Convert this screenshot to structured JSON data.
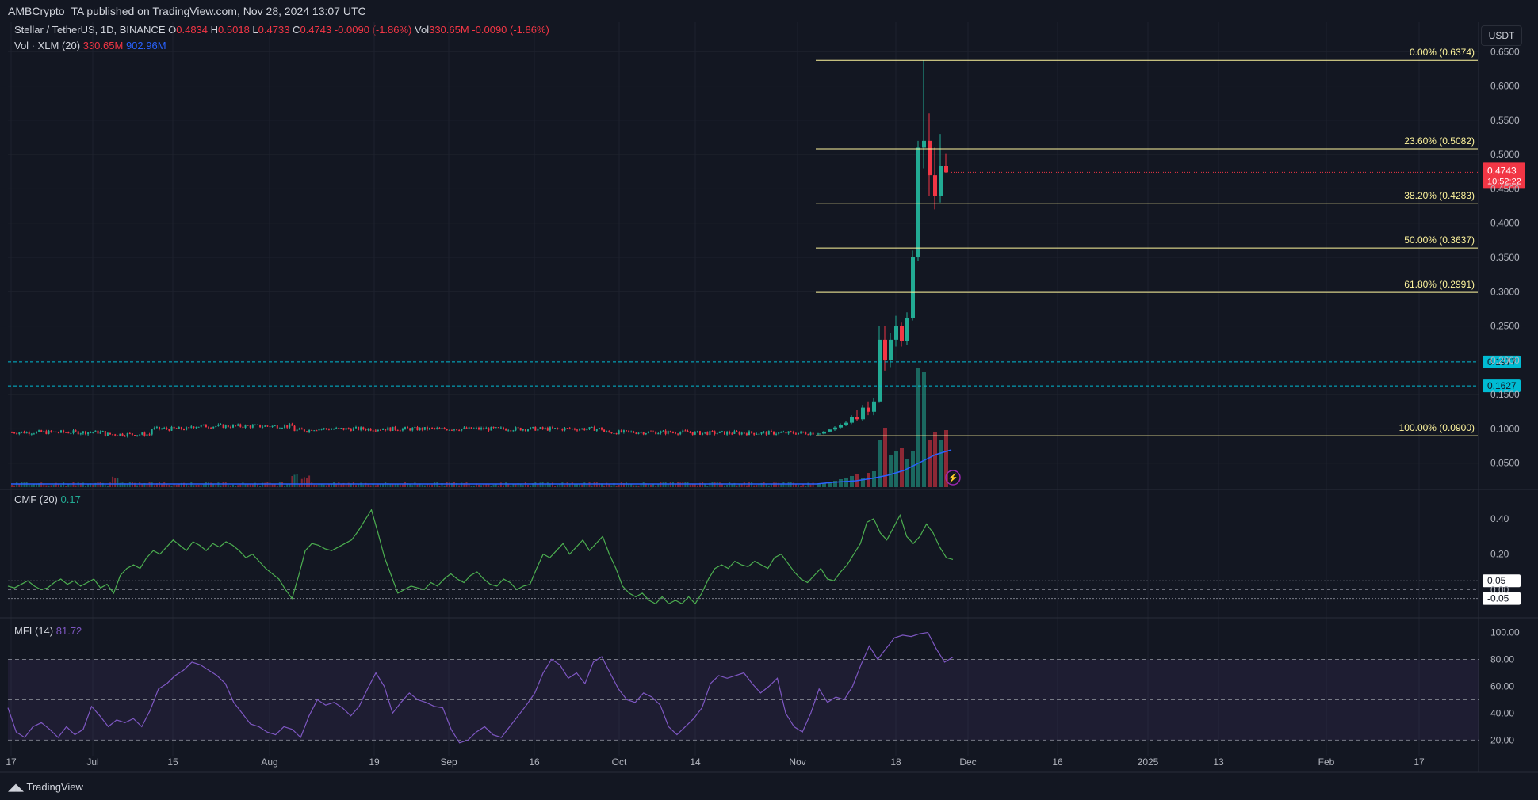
{
  "header": {
    "published": "AMBCrypto_TA published on TradingView.com, Nov 28, 2024 13:07 UTC"
  },
  "legend": {
    "symbol": "Stellar / TetherUS, 1D, BINANCE",
    "ohlc": {
      "o_label": "O",
      "o": "0.4834",
      "h_label": "H",
      "h": "0.5018",
      "l_label": "L",
      "l": "0.4733",
      "c_label": "C",
      "c": "0.4743",
      "chg": "-0.0090 (-1.86%)",
      "vol_label": "Vol",
      "vol": "330.65M",
      "vol_chg": "-0.0090 (-1.86%)"
    },
    "volume": {
      "label": "Vol · XLM (20)",
      "value": "330.65M",
      "ma": "902.96M"
    },
    "cmf": {
      "label": "CMF (20)",
      "value": "0.17"
    },
    "mfi": {
      "label": "MFI (14)",
      "value": "81.72"
    }
  },
  "currency": "USDT",
  "footer": "TradingView",
  "colors": {
    "bg": "#131722",
    "up": "#22ab94",
    "down": "#f23645",
    "fib": "#fff59d",
    "cyan": "#00bcd4",
    "cmf": "#4caf50",
    "mfi": "#7e57c2",
    "volma": "#2962ff"
  },
  "chart_data": [
    {
      "type": "candlestick",
      "title": "Stellar / TetherUS, 1D, BINANCE",
      "ylabel": "USDT",
      "x_ticks": [
        "17",
        "Jul",
        "15",
        "Aug",
        "19",
        "Sep",
        "16",
        "Oct",
        "14",
        "Nov",
        "18",
        "Dec",
        "16",
        "2025",
        "13",
        "Feb",
        "17"
      ],
      "y_ticks": [
        "0.6500",
        "0.6000",
        "0.5500",
        "0.5000",
        "0.4500",
        "0.4000",
        "0.3500",
        "0.3000",
        "0.2500",
        "0.2000",
        "0.1500",
        "0.1000",
        "0.0500"
      ],
      "ylim": [
        0.015,
        0.685
      ],
      "candles_nov": [
        {
          "o": 0.0925,
          "h": 0.094,
          "l": 0.091,
          "c": 0.093
        },
        {
          "o": 0.093,
          "h": 0.097,
          "l": 0.092,
          "c": 0.096
        },
        {
          "o": 0.096,
          "h": 0.1,
          "l": 0.095,
          "c": 0.099
        },
        {
          "o": 0.099,
          "h": 0.104,
          "l": 0.097,
          "c": 0.102
        },
        {
          "o": 0.102,
          "h": 0.108,
          "l": 0.1,
          "c": 0.106
        },
        {
          "o": 0.106,
          "h": 0.112,
          "l": 0.104,
          "c": 0.109
        },
        {
          "o": 0.109,
          "h": 0.12,
          "l": 0.107,
          "c": 0.117
        },
        {
          "o": 0.117,
          "h": 0.128,
          "l": 0.112,
          "c": 0.114
        },
        {
          "o": 0.114,
          "h": 0.135,
          "l": 0.112,
          "c": 0.131
        },
        {
          "o": 0.131,
          "h": 0.14,
          "l": 0.12,
          "c": 0.125
        },
        {
          "o": 0.125,
          "h": 0.145,
          "l": 0.12,
          "c": 0.14
        },
        {
          "o": 0.14,
          "h": 0.25,
          "l": 0.138,
          "c": 0.23
        },
        {
          "o": 0.23,
          "h": 0.25,
          "l": 0.185,
          "c": 0.2
        },
        {
          "o": 0.2,
          "h": 0.24,
          "l": 0.19,
          "c": 0.23
        },
        {
          "o": 0.23,
          "h": 0.265,
          "l": 0.22,
          "c": 0.25
        },
        {
          "o": 0.25,
          "h": 0.255,
          "l": 0.22,
          "c": 0.228
        },
        {
          "o": 0.228,
          "h": 0.27,
          "l": 0.222,
          "c": 0.262
        },
        {
          "o": 0.262,
          "h": 0.36,
          "l": 0.258,
          "c": 0.35
        },
        {
          "o": 0.35,
          "h": 0.52,
          "l": 0.345,
          "c": 0.51
        },
        {
          "o": 0.51,
          "h": 0.6374,
          "l": 0.48,
          "c": 0.52
        },
        {
          "o": 0.52,
          "h": 0.56,
          "l": 0.44,
          "c": 0.47
        },
        {
          "o": 0.47,
          "h": 0.51,
          "l": 0.42,
          "c": 0.44
        },
        {
          "o": 0.44,
          "h": 0.53,
          "l": 0.43,
          "c": 0.4834
        },
        {
          "o": 0.4834,
          "h": 0.5018,
          "l": 0.4733,
          "c": 0.4743
        }
      ],
      "last_price": "0.4743",
      "countdown": "10:52:22",
      "fibonacci": [
        {
          "label": "0.00% (0.6374)",
          "value": 0.6374
        },
        {
          "label": "23.60% (0.5082)",
          "value": 0.5082
        },
        {
          "label": "38.20% (0.4283)",
          "value": 0.4283
        },
        {
          "label": "50.00% (0.3637)",
          "value": 0.3637
        },
        {
          "label": "61.80% (0.2991)",
          "value": 0.2991
        },
        {
          "label": "100.00% (0.0900)",
          "value": 0.09
        }
      ],
      "horizontal_levels": [
        {
          "label": "0.1977",
          "value": 0.1977
        },
        {
          "label": "0.1627",
          "value": 0.1627
        }
      ]
    },
    {
      "type": "line",
      "title": "CMF (20)",
      "y_ticks": [
        "0.40",
        "0.20"
      ],
      "levels": [
        "0.05",
        "-0.05"
      ],
      "level_values": [
        0.05,
        -0.05
      ],
      "zero_label": "0.00",
      "ylim": [
        -0.15,
        0.52
      ],
      "values": [
        0.02,
        0.01,
        0.03,
        0.05,
        0.02,
        0.0,
        0.01,
        0.04,
        0.06,
        0.03,
        0.05,
        0.02,
        0.04,
        0.06,
        0.01,
        0.03,
        -0.02,
        0.08,
        0.12,
        0.14,
        0.12,
        0.18,
        0.22,
        0.2,
        0.24,
        0.28,
        0.25,
        0.22,
        0.27,
        0.25,
        0.22,
        0.26,
        0.24,
        0.27,
        0.25,
        0.22,
        0.18,
        0.2,
        0.16,
        0.12,
        0.09,
        0.06,
        0.0,
        -0.05,
        0.08,
        0.22,
        0.26,
        0.25,
        0.23,
        0.22,
        0.24,
        0.26,
        0.28,
        0.33,
        0.39,
        0.45,
        0.32,
        0.18,
        0.08,
        -0.02,
        0.0,
        0.02,
        0.01,
        0.0,
        0.04,
        0.02,
        0.06,
        0.09,
        0.06,
        0.04,
        0.08,
        0.1,
        0.06,
        0.03,
        0.02,
        0.06,
        0.04,
        0.0,
        0.02,
        0.03,
        0.12,
        0.2,
        0.18,
        0.22,
        0.26,
        0.2,
        0.24,
        0.28,
        0.22,
        0.26,
        0.3,
        0.2,
        0.12,
        0.02,
        -0.02,
        -0.04,
        -0.02,
        -0.06,
        -0.08,
        -0.04,
        -0.08,
        -0.06,
        -0.08,
        -0.04,
        -0.08,
        -0.02,
        0.06,
        0.12,
        0.14,
        0.12,
        0.16,
        0.14,
        0.13,
        0.16,
        0.14,
        0.12,
        0.18,
        0.2,
        0.15,
        0.1,
        0.06,
        0.04,
        0.08,
        0.12,
        0.06,
        0.05,
        0.1,
        0.14,
        0.2,
        0.26,
        0.38,
        0.4,
        0.32,
        0.28,
        0.35,
        0.42,
        0.3,
        0.26,
        0.3,
        0.37,
        0.32,
        0.24,
        0.18,
        0.17
      ],
      "last_value": "0.17"
    },
    {
      "type": "line",
      "title": "MFI (14)",
      "y_ticks": [
        "100.00",
        "80.00",
        "60.00",
        "40.00",
        "20.00"
      ],
      "bands": [
        80,
        50,
        20
      ],
      "ylim": [
        12,
        105
      ],
      "values": [
        44,
        26,
        22,
        30,
        33,
        28,
        22,
        30,
        24,
        28,
        45,
        38,
        30,
        35,
        33,
        36,
        30,
        42,
        58,
        62,
        68,
        72,
        78,
        76,
        72,
        68,
        62,
        48,
        40,
        32,
        30,
        26,
        24,
        30,
        28,
        22,
        38,
        50,
        46,
        48,
        44,
        38,
        45,
        58,
        70,
        60,
        40,
        48,
        55,
        50,
        48,
        45,
        44,
        28,
        18,
        20,
        26,
        30,
        24,
        22,
        30,
        38,
        46,
        55,
        70,
        80,
        76,
        66,
        70,
        62,
        78,
        82,
        70,
        58,
        50,
        48,
        55,
        52,
        46,
        30,
        24,
        30,
        36,
        44,
        62,
        68,
        66,
        68,
        70,
        62,
        55,
        60,
        66,
        40,
        30,
        26,
        40,
        58,
        48,
        52,
        50,
        60,
        76,
        90,
        80,
        88,
        96,
        98,
        97,
        99,
        100,
        88,
        78,
        81.72
      ],
      "last_value": "81.72"
    }
  ]
}
